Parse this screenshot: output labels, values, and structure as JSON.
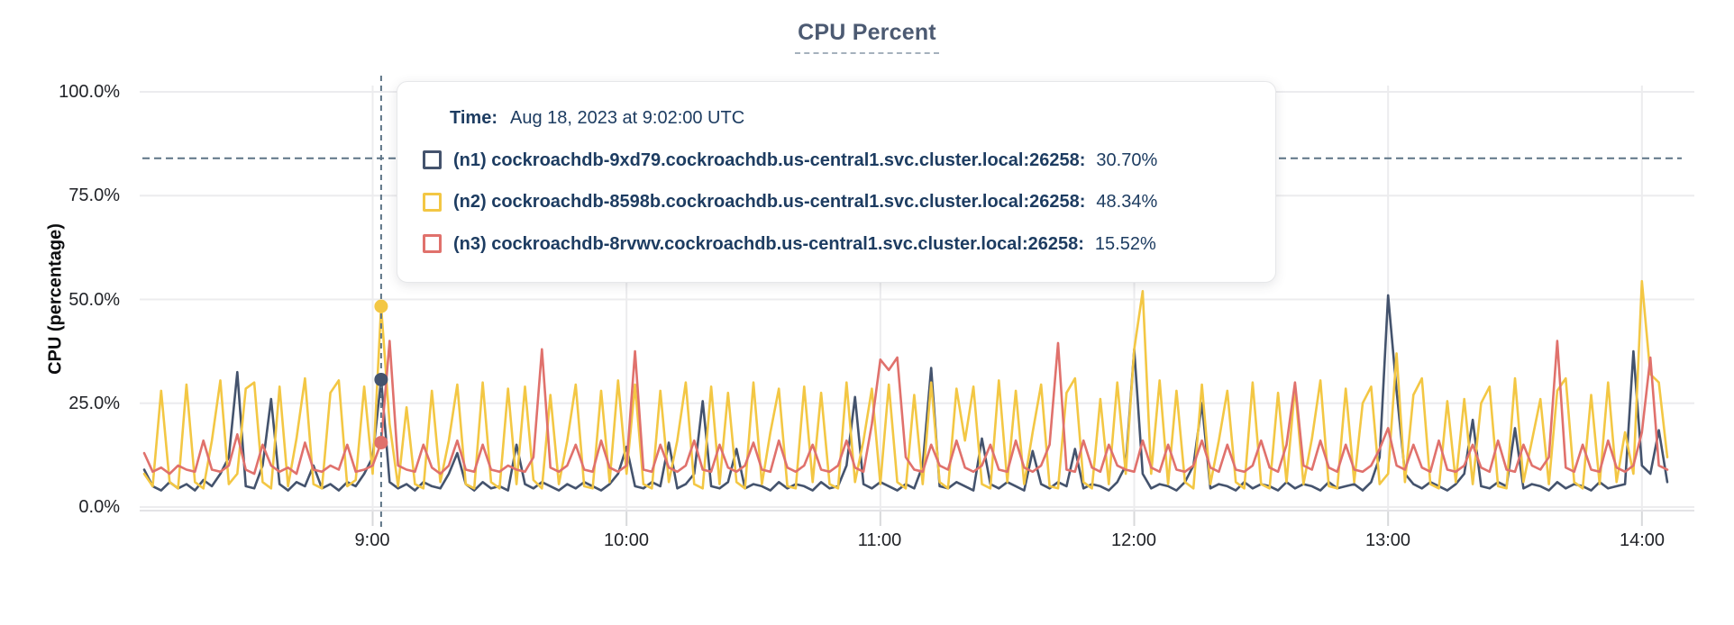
{
  "title": {
    "text": "CPU Percent"
  },
  "y_axis": {
    "label": "CPU (percentage)",
    "ticks": [
      "100.0%",
      "75.0%",
      "50.0%",
      "25.0%",
      "0.0%"
    ],
    "tick_values": [
      100,
      75,
      50,
      25,
      0
    ]
  },
  "x_axis": {
    "ticks": [
      "9:00",
      "10:00",
      "11:00",
      "12:00",
      "13:00",
      "14:00"
    ]
  },
  "threshold": {
    "percent": 84
  },
  "colors": {
    "series_n1": "#44536d",
    "series_n2": "#f3c744",
    "series_n3": "#e0716c",
    "dashed_line": "#5d7486",
    "grid": "#ececee",
    "axis_line": "#e3e3e6",
    "tick_stub": "#d8d9db",
    "tooltip_text": "#1d3c61",
    "title_text": "#4c5a72"
  },
  "hover": {
    "time_label": "Time:",
    "time_value": "Aug 18, 2023 at 9:02:00 UTC",
    "rows": [
      {
        "id": "n1",
        "label": "(n1) cockroachdb-9xd79.cockroachdb.us-central1.svc.cluster.local:26258:",
        "value": "30.70%",
        "color": "#44536d"
      },
      {
        "id": "n2",
        "label": "(n2) cockroachdb-8598b.cockroachdb.us-central1.svc.cluster.local:26258:",
        "value": "48.34%",
        "color": "#f3c744"
      },
      {
        "id": "n3",
        "label": "(n3) cockroachdb-8rvwv.cockroachdb.us-central1.svc.cluster.local:26258:",
        "value": "15.52%",
        "color": "#e0716c"
      }
    ]
  },
  "chart_data": {
    "type": "line",
    "title": "CPU Percent",
    "ylabel": "CPU (percentage)",
    "ylim": [
      0,
      100
    ],
    "grid": true,
    "x_start": "8:06",
    "x_end": "14:06",
    "interval_minutes": 2,
    "x_tick_labels": [
      "9:00",
      "10:00",
      "11:00",
      "12:00",
      "13:00",
      "14:00"
    ],
    "x_tick_indices": [
      27,
      57,
      87,
      117,
      147,
      177
    ],
    "hover_index": 28,
    "threshold_percent": 84,
    "series": [
      {
        "name": "(n1) cockroachdb-9xd79.cockroachdb.us-central1.svc.cluster.local:26258",
        "color": "#44536d",
        "values": [
          9,
          5,
          4,
          6,
          4.5,
          5.5,
          4,
          6.5,
          5,
          8,
          12,
          32.5,
          5,
          4.5,
          10,
          26,
          5.5,
          4,
          6,
          5,
          10,
          4.5,
          5.5,
          4,
          6,
          5,
          8,
          12,
          30.7,
          6,
          4.5,
          5.5,
          4,
          6,
          5,
          4.5,
          8,
          13,
          5.5,
          4,
          6,
          4.5,
          5,
          4,
          15,
          5.5,
          4.5,
          6,
          5,
          4,
          5.5,
          4.5,
          6,
          5,
          4,
          5.5,
          8,
          14.5,
          5,
          4.5,
          6,
          5,
          15.5,
          4.5,
          5.5,
          8,
          25.5,
          5,
          4.5,
          6,
          14,
          4.5,
          5.5,
          5,
          4,
          6,
          4.5,
          5.5,
          5,
          4,
          6,
          4.5,
          5,
          10,
          26.5,
          5.5,
          4.5,
          6,
          5,
          4,
          5.5,
          4.5,
          10,
          33.5,
          5,
          4.5,
          6,
          5,
          4,
          16.5,
          5.5,
          4.5,
          6,
          5,
          4,
          13.5,
          5.5,
          4.5,
          6,
          5,
          14,
          4.5,
          5.5,
          5,
          4,
          6,
          10,
          38,
          8,
          4.5,
          5.5,
          5,
          4,
          6,
          10,
          25,
          4.5,
          5.5,
          5,
          4,
          6,
          4.5,
          5.5,
          5,
          4,
          6,
          4.5,
          5.5,
          5,
          4,
          6,
          4.5,
          5,
          5.5,
          4,
          6,
          12,
          51,
          28,
          8,
          5.5,
          4.5,
          6,
          5,
          4,
          5.5,
          8,
          21,
          5,
          4.5,
          6,
          5,
          19,
          4.5,
          5.5,
          5,
          4,
          6,
          4.5,
          5.5,
          5,
          4,
          6,
          4.5,
          5,
          5.5,
          37.5,
          10,
          8,
          18.5,
          6
        ]
      },
      {
        "name": "(n2) cockroachdb-8598b.cockroachdb.us-central1.svc.cluster.local:26258",
        "color": "#f3c744",
        "values": [
          8,
          5,
          28,
          6,
          4.5,
          29.5,
          6,
          4.5,
          16,
          30.5,
          5.5,
          8,
          28.5,
          30,
          6,
          4.5,
          29,
          5,
          16.5,
          31,
          5.5,
          4.5,
          27.5,
          30.5,
          5,
          6.5,
          29,
          8,
          48.34,
          20,
          5,
          24,
          5.5,
          4.5,
          28,
          6,
          16,
          29.5,
          5.5,
          4.5,
          30,
          6,
          4.5,
          28.5,
          5.5,
          29,
          6.5,
          4.5,
          27,
          5.5,
          16,
          29.5,
          5,
          4.5,
          28,
          6,
          30.5,
          8,
          29.5,
          5.5,
          4.5,
          28,
          6,
          16,
          30,
          5.5,
          4.5,
          29,
          5.5,
          27.5,
          6,
          4.5,
          30,
          5.5,
          18,
          28.5,
          5,
          4.5,
          29,
          6,
          27.5,
          5.5,
          4.5,
          30,
          6,
          16,
          28.5,
          5.5,
          29.5,
          6,
          4.5,
          27,
          5.5,
          30,
          6,
          4.5,
          28.5,
          16,
          29,
          5.5,
          4.5,
          30.5,
          6,
          28,
          5.5,
          18,
          29.5,
          5,
          4.5,
          27.5,
          31,
          6,
          4.5,
          26,
          5.5,
          30,
          8,
          38,
          52,
          8,
          30.5,
          5.5,
          28,
          6,
          4.5,
          29.5,
          5.5,
          16,
          28,
          6,
          4.5,
          30,
          5.5,
          4.5,
          27.5,
          6,
          29,
          5.5,
          16.5,
          30.5,
          5,
          4.5,
          28.5,
          6,
          25,
          29,
          5.5,
          8,
          37,
          6,
          27,
          31,
          5.5,
          4.5,
          25.5,
          6,
          26,
          5.5,
          25,
          29,
          5,
          4.5,
          31,
          6,
          16,
          26,
          5.5,
          28,
          31,
          6,
          4.5,
          27,
          5.5,
          30,
          6,
          18,
          8,
          54.4,
          32,
          30,
          12
        ]
      },
      {
        "name": "(n3) cockroachdb-8rvwv.cockroachdb.us-central1.svc.cluster.local:26258",
        "color": "#e0716c",
        "values": [
          13,
          8.5,
          9.5,
          8,
          10,
          9,
          8.5,
          16,
          9,
          8.5,
          10,
          17.5,
          9,
          8,
          15,
          10,
          8.5,
          9.5,
          8,
          15.5,
          9,
          8.5,
          10,
          9,
          15,
          8.5,
          9,
          10,
          15.52,
          40,
          10,
          9,
          8.5,
          15,
          9.5,
          8,
          10,
          16,
          9,
          8.5,
          15,
          9,
          8.5,
          10,
          9,
          8.5,
          12,
          38,
          9.5,
          8.5,
          10,
          15,
          9,
          8.5,
          16,
          9.5,
          8.5,
          10,
          37.5,
          9,
          8.5,
          15,
          9.5,
          8.5,
          10,
          16,
          9,
          8.5,
          15,
          9.5,
          8.5,
          10,
          15.5,
          9,
          8.5,
          16,
          9.5,
          8.5,
          10,
          15,
          9,
          8.5,
          10,
          16,
          9.5,
          8.5,
          20,
          35.5,
          33,
          36,
          12,
          9,
          8.5,
          15,
          10,
          9,
          16,
          9.5,
          8.5,
          10,
          15,
          9,
          8.5,
          16,
          9.5,
          8.5,
          10,
          15,
          39.5,
          9,
          8.5,
          16,
          9.5,
          8.5,
          15,
          10,
          9,
          8.5,
          16,
          9.5,
          8.5,
          15,
          9,
          8.5,
          10,
          16,
          9.5,
          8.5,
          15,
          9,
          8.5,
          10,
          16,
          9.5,
          8.5,
          15,
          30,
          10,
          9,
          16,
          9.5,
          8.5,
          15,
          9,
          8.5,
          10,
          14,
          19,
          10,
          9,
          15,
          9.5,
          8.5,
          16,
          9,
          8.5,
          10,
          15,
          9.5,
          8.5,
          16,
          9,
          8.5,
          15,
          10,
          9,
          12,
          40,
          9.5,
          8.5,
          15,
          9,
          8.5,
          16,
          9.5,
          8.5,
          10,
          18,
          36,
          10,
          9
        ]
      }
    ]
  }
}
